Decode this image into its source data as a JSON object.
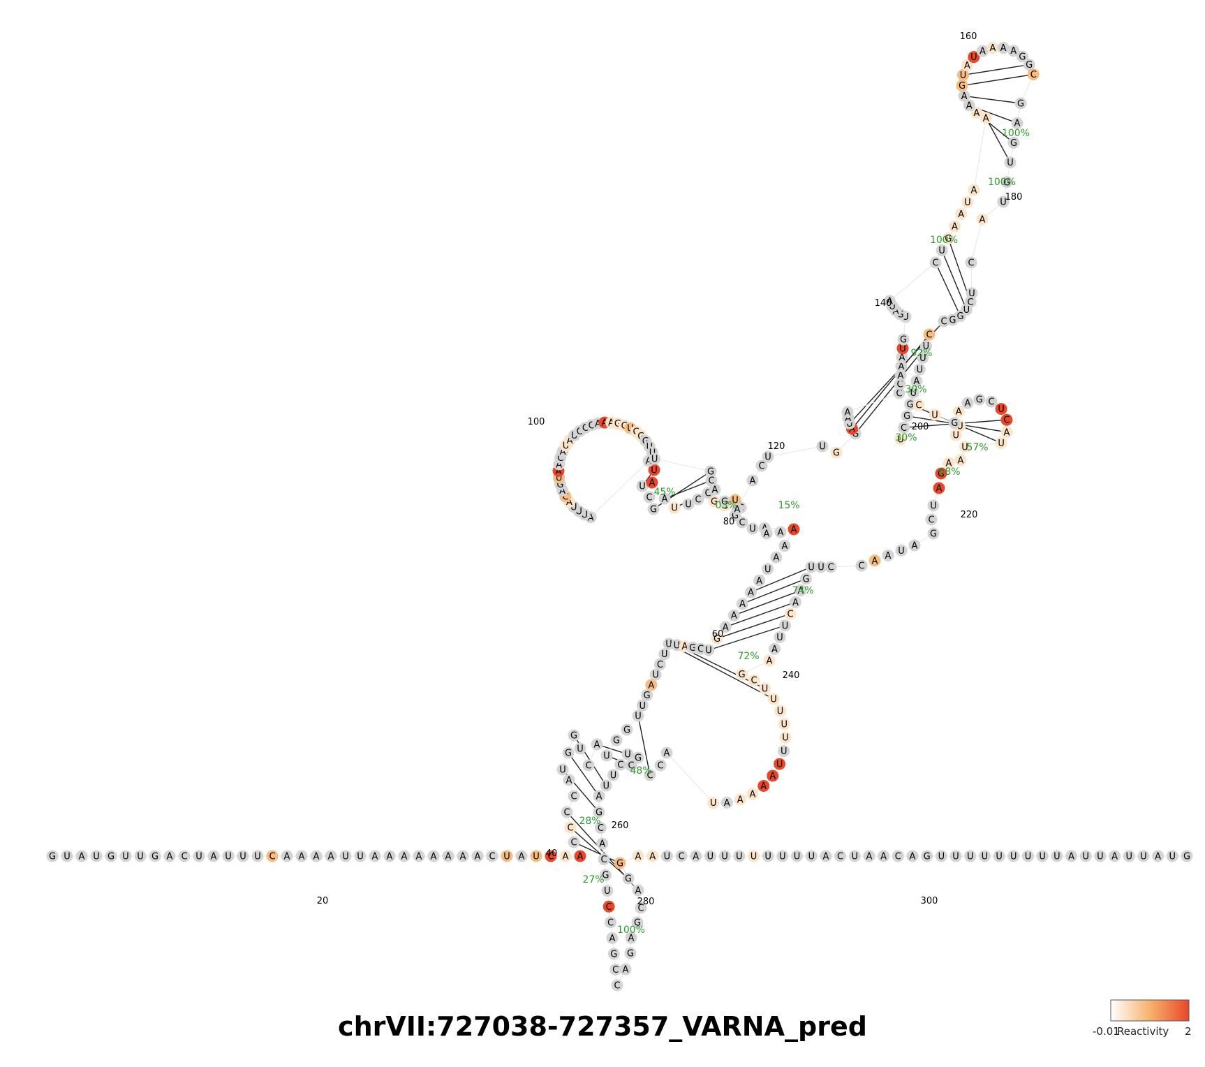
{
  "title": "chrVII:727038-727357_VARNA_pred",
  "colors": {
    "unreactive": "#d4d4d4",
    "low": "#fbe4c8",
    "mid": "#f6bc82",
    "high": "#e8472a",
    "percent": "#2e9a2e"
  },
  "legend": {
    "min_label": "-0.01",
    "label": "Reactivity",
    "max_label": "2",
    "gradient": [
      "#ffffff",
      "#f6b36e",
      "#e8472a"
    ]
  },
  "structure": {
    "sequence": "GUAUGUUGACUAUUUCAAAAUUAAAAAAAACUAUCAACCCCAUGGUCAUGGUUGAUCUUUAGCUGAAAAAUAAAAAAUCGCUGGCCUUAGCUAUAAUUUACAGUAACAUAUCCCAAAGCUCGGUUUGCAGAACUUGGAUAACCAAAUGUGAUACUGAAUAAAAAGUAUAAAAGGCGAGUGUACUCUGGCCUUUAUGGCUCUUUGAAGCUCAUUAAGAUCGAUAACCUUGAACUUAAGCUUUUUUUAAAAAUACCGCUCUUAGCACGUCCAGCCAGAGCAGGAAUCAUUUUUUUUACUAACAGUUUUUUUUUAUUAUUAUAG",
    "reactivity_levels": [
      0,
      0,
      0,
      0,
      0,
      0,
      0,
      0,
      0,
      0,
      0,
      0,
      0,
      0,
      0,
      2,
      0,
      0,
      0,
      0,
      0,
      0,
      0,
      0,
      0,
      0,
      0,
      0,
      0,
      0,
      0,
      2,
      0,
      2,
      3,
      1,
      3,
      0,
      1,
      0,
      0,
      0,
      0,
      0,
      0,
      0,
      0,
      0,
      0,
      0,
      0,
      0,
      0,
      0,
      2,
      0,
      0,
      0,
      0,
      0,
      1,
      0,
      0,
      0,
      1,
      0,
      0,
      0,
      0,
      0,
      0,
      0,
      0,
      3,
      0,
      0,
      0,
      0,
      0,
      0,
      0,
      2,
      1,
      1,
      0,
      0,
      0,
      1,
      0,
      0,
      0,
      0,
      3,
      3,
      0,
      0,
      0,
      0,
      0,
      1,
      2,
      0,
      0,
      2,
      3,
      0,
      0,
      0,
      1,
      1,
      0,
      0,
      0,
      0,
      0,
      3,
      1,
      1,
      1,
      2,
      1,
      1,
      0,
      0,
      0,
      0,
      0,
      0,
      0,
      0,
      0,
      0,
      0,
      0,
      0,
      1,
      0,
      3,
      0,
      0,
      0,
      0,
      0,
      0,
      0,
      0,
      3,
      0,
      0,
      0,
      0,
      0,
      0,
      0,
      0,
      1,
      1,
      1,
      1,
      1,
      1,
      1,
      0,
      0,
      2,
      2,
      1,
      3,
      0,
      1,
      0,
      0,
      0,
      0,
      2,
      0,
      0,
      0,
      0,
      0,
      0,
      1,
      0,
      0,
      0,
      0,
      0,
      0,
      0,
      2,
      0,
      0,
      0,
      0,
      0,
      0,
      0,
      0,
      1,
      1,
      1,
      1,
      1,
      0,
      1,
      0,
      0,
      0,
      3,
      3,
      1,
      1,
      1,
      1,
      1,
      3,
      3,
      0,
      0,
      0,
      0,
      0,
      0,
      2,
      0,
      0,
      0,
      0,
      0,
      0,
      0,
      1,
      0,
      0,
      0,
      1,
      1,
      1,
      1,
      1,
      1,
      1,
      1,
      0,
      3,
      3,
      3,
      1,
      1,
      0,
      1,
      0,
      0,
      0,
      0,
      0,
      0,
      0,
      0,
      0,
      0,
      0,
      0,
      0,
      0,
      0,
      0,
      3,
      0,
      0,
      0,
      0,
      0,
      0,
      0,
      0,
      0,
      0,
      0,
      0,
      2,
      1,
      1,
      0,
      0,
      0,
      0,
      0,
      0,
      1,
      0,
      0,
      0,
      0,
      0,
      0,
      0,
      0,
      0,
      0,
      0,
      0,
      0,
      0,
      0,
      0,
      0,
      0,
      0,
      0,
      0,
      0,
      0,
      0,
      0,
      0,
      0,
      0,
      0,
      0,
      0,
      0,
      0,
      0
    ],
    "position_labels": [
      "20",
      "40",
      "60",
      "80",
      "100",
      "120",
      "140",
      "160",
      "180",
      "200",
      "220",
      "240",
      "260",
      "280",
      "300"
    ],
    "helix_percentages": [
      "27%",
      "28%",
      "48%",
      "72%",
      "74%",
      "15%",
      "03%",
      "45%",
      "30%",
      "30%",
      "92%",
      "100%",
      "100%",
      "100%",
      "68%",
      "57%",
      "100%"
    ]
  }
}
